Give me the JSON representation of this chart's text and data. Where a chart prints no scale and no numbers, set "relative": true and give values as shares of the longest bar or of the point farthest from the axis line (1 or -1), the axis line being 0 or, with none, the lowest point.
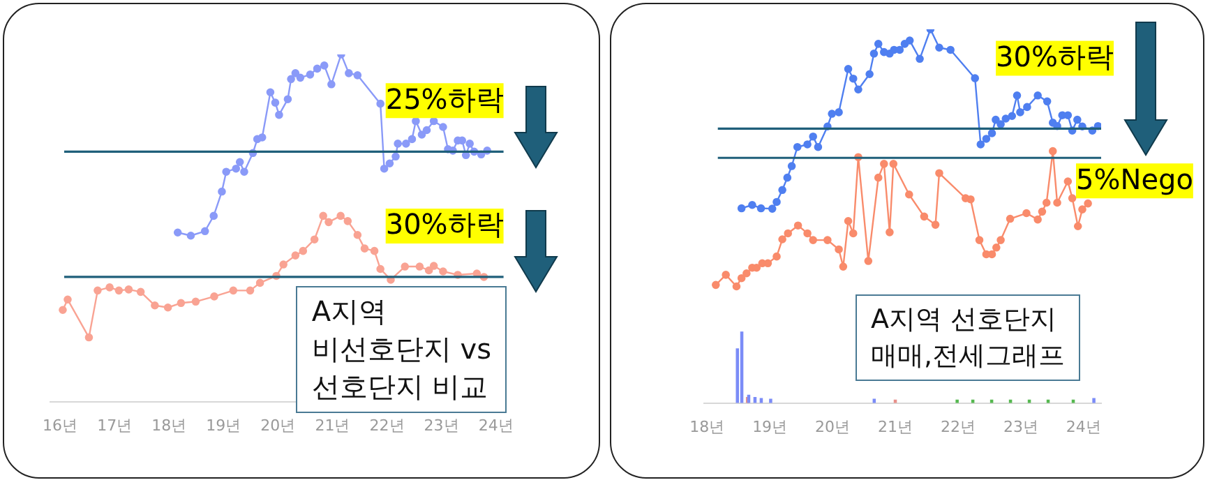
{
  "chart_data": [
    {
      "type": "line",
      "relative": true,
      "marker": "circle",
      "xlim": [
        15.82,
        24.14
      ],
      "xticks": [
        {
          "value": 16,
          "label": "16년"
        },
        {
          "value": 17,
          "label": "17년"
        },
        {
          "value": 18,
          "label": "18년"
        },
        {
          "value": 19,
          "label": "19년"
        },
        {
          "value": 20,
          "label": "20년"
        },
        {
          "value": 21,
          "label": "21년"
        },
        {
          "value": 22,
          "label": "22년"
        },
        {
          "value": 23,
          "label": "23년"
        },
        {
          "value": 24,
          "label": "24년"
        }
      ],
      "series": [
        {
          "color": "#8a9af8",
          "x": [
            18.16,
            18.4,
            18.66,
            18.82,
            18.97,
            19.05,
            19.23,
            19.3,
            19.38,
            19.54,
            19.62,
            19.71,
            19.86,
            19.95,
            20.02,
            20.18,
            20.24,
            20.32,
            20.41,
            20.59,
            20.72,
            20.85,
            20.98,
            21.16,
            21.3,
            21.46,
            21.88,
            21.95,
            22.05,
            22.16,
            22.2,
            22.35,
            22.46,
            22.53,
            22.64,
            22.73,
            22.86,
            23.03,
            23.12,
            23.21,
            23.3,
            23.38,
            23.45,
            23.52,
            23.6,
            23.73,
            23.84
          ],
          "values": [
            0.487,
            0.478,
            0.491,
            0.535,
            0.605,
            0.662,
            0.671,
            0.69,
            0.662,
            0.716,
            0.756,
            0.761,
            0.891,
            0.861,
            0.826,
            0.871,
            0.929,
            0.946,
            0.933,
            0.942,
            0.959,
            0.968,
            0.914,
            1,
            0.946,
            0.94,
            0.858,
            0.671,
            0.686,
            0.706,
            0.743,
            0.743,
            0.756,
            0.808,
            0.769,
            0.782,
            0.808,
            0.791,
            0.727,
            0.723,
            0.752,
            0.752,
            0.71,
            0.743,
            0.72,
            0.712,
            0.723
          ]
        },
        {
          "color": "#f9a393",
          "x": [
            16.05,
            16.14,
            16.53,
            16.69,
            16.91,
            17.08,
            17.26,
            17.48,
            17.74,
            17.98,
            18.22,
            18.49,
            18.83,
            19.18,
            19.49,
            19.67,
            19.97,
            20.1,
            20.32,
            20.46,
            20.67,
            20.83,
            20.93,
            21.15,
            21.28,
            21.46,
            21.59,
            21.77,
            21.88,
            22.07,
            22.33,
            22.6,
            22.77,
            22.86,
            23.03,
            23.3,
            23.65,
            23.78
          ],
          "values": [
            0.264,
            0.294,
            0.185,
            0.32,
            0.329,
            0.32,
            0.323,
            0.316,
            0.277,
            0.271,
            0.284,
            0.288,
            0.303,
            0.32,
            0.32,
            0.342,
            0.362,
            0.395,
            0.421,
            0.434,
            0.467,
            0.535,
            0.517,
            0.535,
            0.52,
            0.48,
            0.441,
            0.434,
            0.382,
            0.351,
            0.389,
            0.389,
            0.378,
            0.391,
            0.375,
            0.365,
            0.369,
            0.359
          ]
        }
      ],
      "ref_lines": [
        {
          "axis": "y",
          "value": 0.72,
          "label": "25%하락",
          "color": "#1f5f7a"
        },
        {
          "axis": "y",
          "value": 0.359,
          "label": "30%하락",
          "color": "#1f5f7a"
        }
      ],
      "annotations": [
        "A지역\n비선호단지 vs\n선호단지 비교"
      ]
    },
    {
      "type": "line",
      "relative": true,
      "marker": "circle",
      "xlim": [
        17.95,
        24.28
      ],
      "xticks": [
        {
          "value": 18,
          "label": "18년"
        },
        {
          "value": 19,
          "label": "19년"
        },
        {
          "value": 20,
          "label": "20년"
        },
        {
          "value": 21,
          "label": "21년"
        },
        {
          "value": 22,
          "label": "22년"
        },
        {
          "value": 23,
          "label": "23년"
        },
        {
          "value": 24,
          "label": "24년"
        }
      ],
      "series": [
        {
          "color": "#4f7ff0",
          "x": [
            18.55,
            18.72,
            18.86,
            19.04,
            19.11,
            19.2,
            19.28,
            19.35,
            19.44,
            19.6,
            19.69,
            19.77,
            19.92,
            19.99,
            20.1,
            20.25,
            20.33,
            20.41,
            20.59,
            20.66,
            20.73,
            20.82,
            20.91,
            20.98,
            21.07,
            21.15,
            21.23,
            21.39,
            21.56,
            21.7,
            21.88,
            22.27,
            22.36,
            22.45,
            22.54,
            22.6,
            22.68,
            22.76,
            22.86,
            22.94,
            22.99,
            23.1,
            23.27,
            23.42,
            23.51,
            23.58,
            23.66,
            23.75,
            23.82,
            23.9,
            23.98,
            24.14,
            24.23
          ],
          "values": [
            0.521,
            0.53,
            0.521,
            0.52,
            0.538,
            0.57,
            0.603,
            0.634,
            0.685,
            0.692,
            0.713,
            0.685,
            0.74,
            0.774,
            0.778,
            0.894,
            0.868,
            0.839,
            0.88,
            0.935,
            0.961,
            0.939,
            0.935,
            0.945,
            0.945,
            0.961,
            0.97,
            0.921,
            1,
            0.951,
            0.945,
            0.869,
            0.692,
            0.707,
            0.722,
            0.758,
            0.746,
            0.761,
            0.768,
            0.823,
            0.778,
            0.792,
            0.823,
            0.807,
            0.75,
            0.741,
            0.77,
            0.77,
            0.729,
            0.758,
            0.74,
            0.729,
            0.741
          ]
        },
        {
          "color": "#f98b6b",
          "x": [
            18.14,
            18.3,
            18.47,
            18.55,
            18.63,
            18.72,
            18.79,
            18.88,
            18.97,
            19.11,
            19.2,
            19.29,
            19.45,
            19.6,
            19.69,
            19.92,
            20.1,
            20.17,
            20.25,
            20.33,
            20.41,
            20.57,
            20.73,
            20.82,
            20.91,
            20.97,
            21.22,
            21.46,
            21.64,
            21.7,
            22.12,
            22.2,
            22.34,
            22.45,
            22.54,
            22.61,
            22.68,
            22.83,
            23.09,
            23.27,
            23.34,
            23.41,
            23.51,
            23.58,
            23.75,
            23.82,
            23.91,
            23.98,
            24.07
          ],
          "values": [
            0.316,
            0.343,
            0.312,
            0.334,
            0.347,
            0.362,
            0.362,
            0.374,
            0.374,
            0.392,
            0.438,
            0.454,
            0.475,
            0.454,
            0.436,
            0.436,
            0.411,
            0.365,
            0.487,
            0.454,
            0.658,
            0.38,
            0.603,
            0.64,
            0.457,
            0.64,
            0.558,
            0.499,
            0.477,
            0.615,
            0.548,
            0.545,
            0.436,
            0.398,
            0.398,
            0.416,
            0.436,
            0.493,
            0.508,
            0.491,
            0.512,
            0.536,
            0.674,
            0.536,
            0.593,
            0.548,
            0.473,
            0.518,
            0.534
          ]
        },
        {
          "type": "bar",
          "color": "#7b8cf7",
          "x": [
            18.52,
            18.59,
            18.7,
            18.8,
            18.9,
            19.05,
            20.7,
            24.2
          ],
          "values": [
            0.145,
            0.19,
            0.021,
            0.015,
            0.012,
            0.01,
            0.01,
            0.012
          ]
        },
        {
          "type": "bar",
          "color": "#e8908a",
          "x": [
            18.645,
            21.0
          ],
          "values": [
            0.015,
            0.008
          ]
        },
        {
          "type": "bar",
          "color": "#55b84f",
          "x": [
            21.95,
            22.2,
            22.5,
            22.8,
            23.1,
            23.4,
            23.8
          ],
          "values": [
            0.008,
            0.008,
            0.008,
            0.008,
            0.008,
            0.008,
            0.008
          ]
        }
      ],
      "ref_lines": [
        {
          "axis": "y",
          "value": 0.734,
          "label": "30%하락",
          "color": "#1f5f7a"
        },
        {
          "axis": "y",
          "value": 0.656,
          "label": "5%Nego",
          "color": "#1f5f7a"
        }
      ],
      "annotations": [
        "A지역 선호단지\n매매,전세그래프"
      ]
    }
  ]
}
